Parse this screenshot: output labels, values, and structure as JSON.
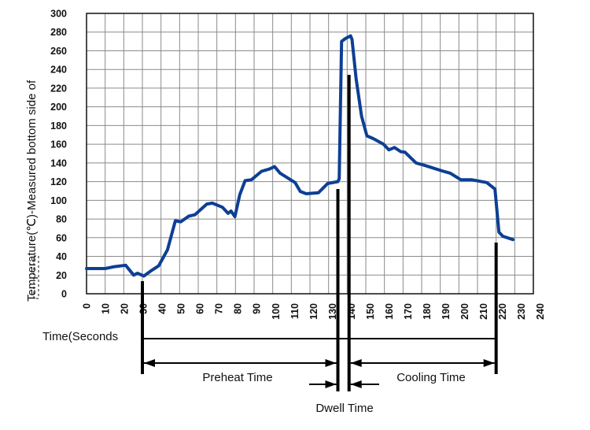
{
  "chart_data": {
    "type": "line",
    "title": "",
    "xlabel": "Time(Seconds",
    "ylabel": "Temperature(℃)-Measured bottom side of",
    "xlim": [
      0,
      240
    ],
    "ylim": [
      0,
      300
    ],
    "xticks": [
      "0",
      "10",
      "20",
      "30",
      "40",
      "50",
      "60",
      "70",
      "80",
      "90",
      "100",
      "110",
      "120",
      "130",
      "140",
      "150",
      "160",
      "170",
      "180",
      "190",
      "200",
      "210",
      "220",
      "230",
      "240"
    ],
    "yticks": [
      "0",
      "20",
      "40",
      "60",
      "80",
      "100",
      "120",
      "140",
      "160",
      "180",
      "200",
      "220",
      "240",
      "260",
      "280",
      "300"
    ],
    "grid": true,
    "line_color": "#0d3f94",
    "series": [
      {
        "x": [
          0,
          10,
          15,
          21,
          25.3,
          27.4,
          30.8,
          35,
          38.8,
          43.5,
          47.7,
          50.6,
          54.9,
          58.2,
          64.6,
          67.5,
          73,
          76,
          77.6,
          79.7,
          82.3,
          85.2,
          88.6,
          94,
          98.3,
          101,
          104,
          112,
          114.8,
          118,
          124.5,
          129.5,
          135,
          135.7,
          137,
          139,
          141.8,
          142.6,
          144.8,
          147.7,
          150.6,
          154,
          159.5,
          162.4,
          165.4,
          168.8,
          171,
          177,
          181.4,
          191,
          195.4,
          201,
          206.8,
          215,
          219.4,
          221.5,
          223.6,
          229
        ],
        "y": [
          27,
          27,
          29,
          30.5,
          20,
          22,
          19,
          25,
          30,
          47,
          78,
          77,
          83,
          84.5,
          96,
          97,
          92.5,
          86,
          88.5,
          82.5,
          106,
          121,
          122,
          131,
          133.5,
          136,
          129,
          119,
          109.5,
          107,
          108,
          118,
          120,
          123,
          270,
          273,
          276,
          272,
          230,
          190,
          169,
          166,
          160,
          154,
          156.5,
          152,
          151.5,
          140,
          137.5,
          131.5,
          129,
          122,
          122,
          119,
          112,
          66,
          61.5,
          58
        ]
      }
    ],
    "annotations": {
      "preheat": "Preheat Time",
      "dwell": "Dwell Time",
      "cooling": "Cooling Time",
      "markers_seconds": [
        30,
        135,
        141,
        220
      ]
    }
  }
}
